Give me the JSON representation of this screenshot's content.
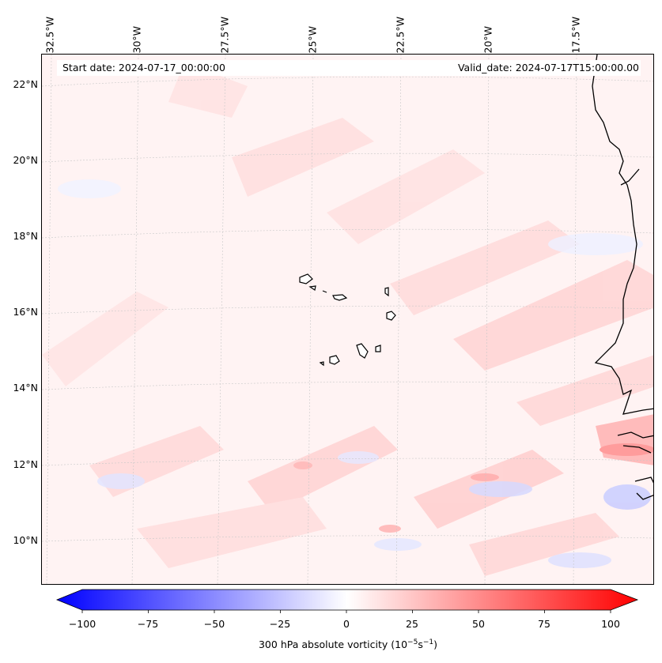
{
  "header": {
    "start_date": "Start date: 2024-07-17_00:00:00",
    "valid_date": "Valid_date: 2024-07-17T15:00:00.00"
  },
  "axes": {
    "lon_labels": [
      "32.5°W",
      "30°W",
      "27.5°W",
      "25°W",
      "22.5°W",
      "20°W",
      "17.5°W"
    ],
    "lat_labels": [
      "22°N",
      "20°N",
      "18°N",
      "16°N",
      "14°N",
      "12°N",
      "10°N"
    ]
  },
  "colorbar": {
    "ticks": [
      "−100",
      "−75",
      "−50",
      "−25",
      "0",
      "25",
      "50",
      "75",
      "100"
    ],
    "label": "300 hPa absolute vorticity (10",
    "label_exp1": "−5",
    "label_mid": "s",
    "label_exp2": "−1",
    "label_end": ")",
    "min_color": "#0000ff",
    "mid_color": "#ffffff",
    "max_color": "#ff0000",
    "range": [
      -100,
      100
    ]
  },
  "map": {
    "field": "300 hPa absolute vorticity",
    "extent_lon": [
      -33,
      -15.5
    ],
    "extent_lat": [
      9,
      23
    ],
    "coastline_color": "#000000",
    "gridlines": "dotted"
  }
}
